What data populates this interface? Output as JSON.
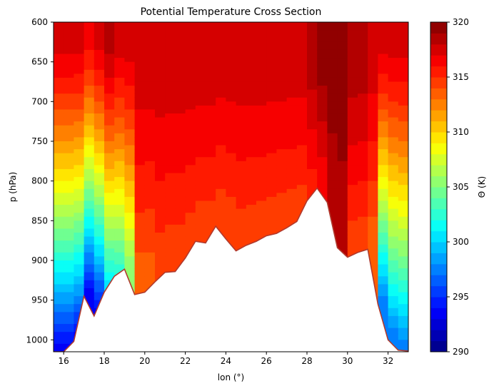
{
  "chart_data": {
    "type": "heatmap",
    "title": "Potential Temperature Cross Section",
    "xlabel": "lon (°)",
    "ylabel": "p (hPa)",
    "xlim": [
      15.5,
      33.0
    ],
    "ylim": [
      1015,
      600
    ],
    "y_inverted": true,
    "x_ticks": [
      "16",
      "18",
      "20",
      "22",
      "24",
      "26",
      "28",
      "30",
      "32"
    ],
    "y_ticks": [
      "600",
      "650",
      "700",
      "750",
      "800",
      "850",
      "900",
      "950",
      "1000"
    ],
    "colorbar": {
      "label": "Θ (K)",
      "range": [
        290,
        320
      ],
      "ticks": [
        "290",
        "295",
        "300",
        "305",
        "310",
        "315",
        "320"
      ],
      "colormap": "jet"
    },
    "theta_profile": {
      "lon": [
        15.5,
        16.0,
        16.5,
        17.0,
        17.5,
        18.0,
        18.5,
        19.0,
        19.5,
        20.0,
        20.5,
        21.0,
        21.5,
        22.0,
        22.5,
        23.0,
        23.5,
        24.0,
        24.5,
        25.0,
        25.5,
        26.0,
        26.5,
        27.0,
        27.5,
        28.0,
        28.5,
        29.0,
        29.5,
        30.0,
        30.5,
        31.0,
        31.5,
        32.0,
        32.5,
        33.0
      ],
      "theta_top_600hPa": [
        318,
        318,
        318,
        317,
        318,
        319,
        318,
        318,
        318,
        318,
        318,
        318,
        318,
        318,
        318,
        318,
        318,
        318,
        318,
        318,
        318,
        318,
        318,
        318,
        318,
        319,
        320,
        320,
        320,
        319,
        319,
        318,
        318,
        318,
        318,
        318
      ],
      "theta_bottom_surface": [
        293,
        293,
        293,
        293,
        293,
        300,
        302,
        305,
        313,
        313,
        314,
        314,
        314,
        314,
        314,
        314,
        314,
        314,
        314,
        314,
        314,
        314,
        314,
        314,
        314,
        315,
        316,
        318,
        318,
        314,
        314,
        313,
        297,
        297,
        297,
        297
      ]
    },
    "surface_pressure": {
      "lon": [
        15.5,
        16.0,
        16.5,
        17.0,
        17.5,
        18.0,
        18.5,
        19.0,
        19.5,
        20.0,
        20.5,
        21.0,
        21.5,
        22.0,
        22.5,
        23.0,
        23.5,
        24.0,
        24.5,
        25.0,
        25.5,
        26.0,
        26.5,
        27.0,
        27.5,
        28.0,
        28.5,
        29.0,
        29.5,
        30.0,
        30.5,
        31.0,
        31.5,
        32.0,
        32.5,
        33.0
      ],
      "p_hPa": [
        1015,
        1015,
        1002,
        945,
        970,
        940,
        920,
        911,
        943,
        940,
        927,
        915,
        914,
        897,
        876,
        878,
        857,
        873,
        888,
        881,
        876,
        869,
        866,
        859,
        851,
        825,
        809,
        827,
        884,
        896,
        890,
        886,
        955,
        1000,
        1013,
        1014
      ]
    },
    "surface_line_color": "#b03a2e"
  }
}
